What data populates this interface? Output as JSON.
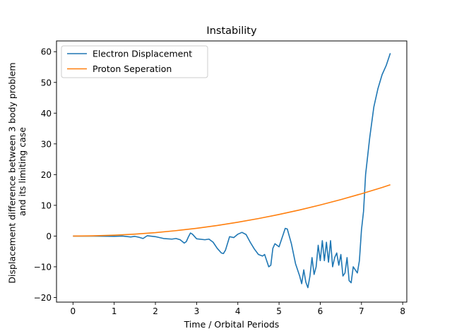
{
  "chart_data": {
    "type": "line",
    "title": "Instability",
    "xlabel": "Time / Orbital Periods",
    "ylabel_lines": [
      "Displacement difference between 3 body problem",
      "and its limiting case"
    ],
    "xlim": [
      -0.4,
      8.1
    ],
    "ylim": [
      -21.5,
      63.5
    ],
    "xticks": [
      0,
      1,
      2,
      3,
      4,
      5,
      6,
      7,
      8
    ],
    "yticks": [
      -20,
      -10,
      0,
      10,
      20,
      30,
      40,
      50,
      60
    ],
    "grid": false,
    "legend_position": "top-left",
    "series": [
      {
        "name": "Electron Displacement",
        "color": "#1f77b4",
        "x": [
          0.0,
          0.5,
          1.0,
          1.2,
          1.4,
          1.5,
          1.6,
          1.7,
          1.8,
          2.0,
          2.2,
          2.4,
          2.5,
          2.6,
          2.7,
          2.75,
          2.8,
          2.85,
          2.9,
          3.0,
          3.2,
          3.3,
          3.4,
          3.5,
          3.6,
          3.65,
          3.7,
          3.8,
          3.9,
          4.0,
          4.1,
          4.2,
          4.3,
          4.4,
          4.5,
          4.6,
          4.65,
          4.7,
          4.75,
          4.8,
          4.85,
          4.9,
          5.0,
          5.1,
          5.15,
          5.2,
          5.3,
          5.4,
          5.5,
          5.55,
          5.6,
          5.65,
          5.7,
          5.75,
          5.8,
          5.85,
          5.9,
          5.95,
          6.0,
          6.05,
          6.1,
          6.15,
          6.2,
          6.25,
          6.3,
          6.35,
          6.4,
          6.45,
          6.5,
          6.55,
          6.6,
          6.65,
          6.7,
          6.75,
          6.8,
          6.85,
          6.9,
          6.95,
          7.0,
          7.05,
          7.1,
          7.2,
          7.3,
          7.4,
          7.5,
          7.6,
          7.7
        ],
        "y": [
          0.0,
          0.0,
          -0.1,
          0.0,
          -0.3,
          -0.1,
          -0.4,
          -0.8,
          0.1,
          -0.2,
          -0.8,
          -1.0,
          -0.8,
          -1.2,
          -2.3,
          -1.8,
          -0.3,
          1.0,
          0.6,
          -0.9,
          -1.2,
          -1.0,
          -2.0,
          -4.0,
          -5.5,
          -5.7,
          -4.6,
          -0.2,
          -0.5,
          0.6,
          1.2,
          0.5,
          -2.0,
          -4.2,
          -6.0,
          -6.5,
          -6.0,
          -8.0,
          -10.0,
          -9.5,
          -4.0,
          -2.5,
          -3.5,
          0.5,
          2.5,
          2.3,
          -2.5,
          -9.0,
          -13.0,
          -15.5,
          -11.0,
          -15.0,
          -16.8,
          -13.0,
          -7.0,
          -12.5,
          -10.0,
          -3.0,
          -8.0,
          -1.5,
          -8.0,
          -2.0,
          -8.5,
          -1.5,
          -10.0,
          -7.0,
          -5.5,
          -9.5,
          -6.0,
          -13.0,
          -12.0,
          -7.0,
          -14.5,
          -15.2,
          -10.0,
          -11.0,
          -12.0,
          -8.0,
          2.0,
          8.0,
          20.0,
          32.0,
          42.0,
          48.0,
          52.5,
          55.5,
          59.5
        ]
      },
      {
        "name": "Proton Seperation",
        "color": "#ff7f0e",
        "x": [
          0.0,
          0.5,
          1.0,
          1.5,
          2.0,
          2.5,
          3.0,
          3.5,
          4.0,
          4.5,
          5.0,
          5.5,
          6.0,
          6.5,
          7.0,
          7.5,
          7.7
        ],
        "y": [
          0.0,
          0.07,
          0.28,
          0.63,
          1.12,
          1.76,
          2.53,
          3.44,
          4.5,
          5.69,
          7.03,
          8.5,
          10.12,
          11.87,
          13.77,
          15.8,
          16.7
        ]
      }
    ]
  }
}
